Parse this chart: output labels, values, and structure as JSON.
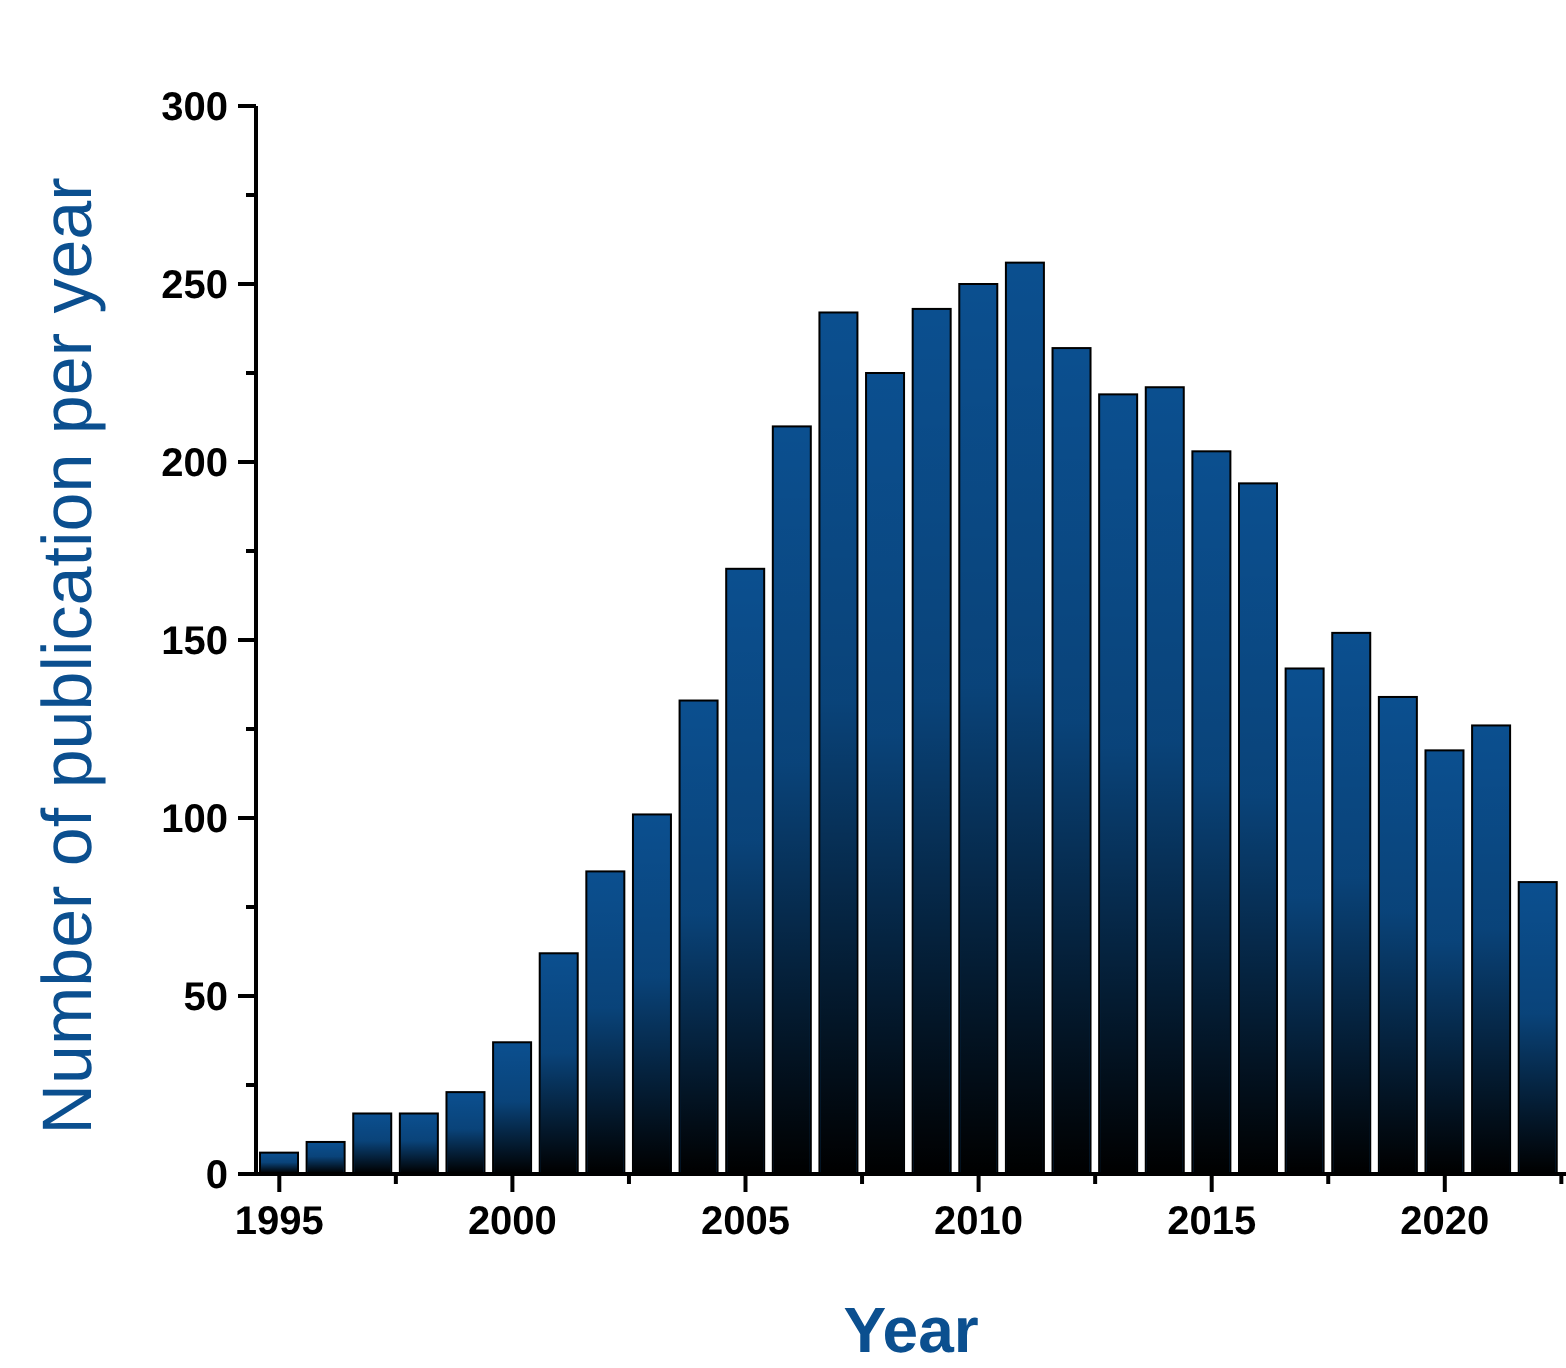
{
  "chart_data": {
    "type": "bar",
    "xlabel": "Year",
    "ylabel": "Number of publication per year",
    "x": [
      1995,
      1996,
      1997,
      1998,
      1999,
      2000,
      2001,
      2002,
      2003,
      2004,
      2005,
      2006,
      2007,
      2008,
      2009,
      2010,
      2011,
      2012,
      2013,
      2014,
      2015,
      2016,
      2017,
      2018,
      2019,
      2020,
      2021,
      2022
    ],
    "values": [
      6,
      9,
      17,
      17,
      23,
      37,
      62,
      85,
      101,
      133,
      170,
      210,
      242,
      225,
      243,
      250,
      256,
      232,
      219,
      221,
      203,
      194,
      142,
      152,
      134,
      119,
      126,
      82
    ],
    "color": "#0b4f8f",
    "xlim": [
      1994.5,
      2022.6
    ],
    "xticks": [
      1995,
      {
        "value": 1997.5,
        "label": null
      },
      2000,
      {
        "value": 2002.5,
        "label": null
      },
      2005,
      {
        "value": 2007.5,
        "label": null
      },
      2010,
      {
        "value": 2012.5,
        "label": null
      },
      2015,
      {
        "value": 2017.5,
        "label": null
      },
      2020,
      {
        "value": 2022.5,
        "label": null
      }
    ],
    "ylim": [
      0,
      300
    ],
    "yticks": [
      0,
      {
        "value": 25,
        "label": null
      },
      50,
      {
        "value": 75,
        "label": null
      },
      100,
      {
        "value": 125,
        "label": null
      },
      150,
      {
        "value": 175,
        "label": null
      },
      200,
      {
        "value": 225,
        "label": null
      },
      250,
      {
        "value": 275,
        "label": null
      },
      300
    ],
    "grid": false,
    "legend": false
  }
}
